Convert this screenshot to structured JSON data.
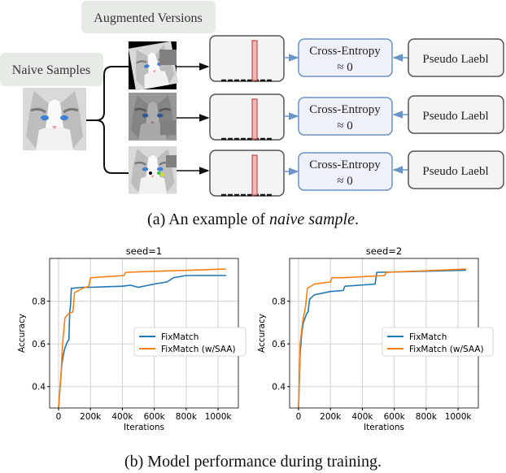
{
  "diagram": {
    "augmented_label": "Augmented Versions",
    "naive_label": "Naive Samples",
    "rows": [
      {
        "loss_line1": "Cross-Entropy",
        "loss_line2": "≈ 0",
        "pseudo_label": "Pseudo Laebl"
      },
      {
        "loss_line1": "Cross-Entropy",
        "loss_line2": "≈ 0",
        "pseudo_label": "Pseudo Laebl"
      },
      {
        "loss_line1": "Cross-Entropy",
        "loss_line2": "≈ 0",
        "pseudo_label": "Pseudo Laebl"
      }
    ],
    "caption_a_prefix": "(a) An example of ",
    "caption_a_italic": "naive sample",
    "caption_a_suffix": ".",
    "colors": {
      "label_bg": "#e6ebe6",
      "loss_border": "#6a93c8",
      "loss_bg": "#eef2f8",
      "bar": "#f4b8b8",
      "bar_border": "#c0504d"
    }
  },
  "caption_b": "(b) Model performance during training.",
  "chart_data": [
    {
      "type": "line",
      "title": "seed=1",
      "xlabel": "Iterations",
      "ylabel": "Accuracy",
      "xlim": [
        -56000,
        1127000
      ],
      "ylim": [
        0.3,
        1.0
      ],
      "xticks": [
        0,
        200000,
        400000,
        600000,
        800000,
        1000000
      ],
      "xtick_labels": [
        "0",
        "200k",
        "400k",
        "600k",
        "800k",
        "1000k"
      ],
      "yticks": [
        0.4,
        0.6,
        0.8
      ],
      "ytick_labels": [
        "0.4",
        "0.6",
        "0.8"
      ],
      "grid": true,
      "legend": "center-right",
      "series": [
        {
          "name": "FixMatch",
          "color": "#1f77b4",
          "x": [
            0,
            10000,
            20000,
            30000,
            40000,
            55000,
            65000,
            70000,
            75000,
            80000,
            150000,
            200000,
            400000,
            450000,
            500000,
            600000,
            680000,
            720000,
            800000,
            1050000
          ],
          "y": [
            0.3,
            0.4,
            0.5,
            0.55,
            0.58,
            0.61,
            0.62,
            0.75,
            0.78,
            0.86,
            0.865,
            0.865,
            0.87,
            0.875,
            0.865,
            0.88,
            0.89,
            0.91,
            0.92,
            0.92
          ]
        },
        {
          "name": "FixMatch (w/SAA)",
          "color": "#ff7f0e",
          "x": [
            0,
            15000,
            25000,
            40000,
            60000,
            90000,
            100000,
            150000,
            190000,
            200000,
            410000,
            420000,
            600000,
            1050000
          ],
          "y": [
            0.3,
            0.45,
            0.6,
            0.72,
            0.74,
            0.75,
            0.84,
            0.86,
            0.87,
            0.91,
            0.92,
            0.935,
            0.94,
            0.95
          ]
        }
      ]
    },
    {
      "type": "line",
      "title": "seed=2",
      "xlabel": "Iterations",
      "ylabel": "Accuracy",
      "xlim": [
        -56000,
        1127000
      ],
      "ylim": [
        0.3,
        1.0
      ],
      "xticks": [
        0,
        200000,
        400000,
        600000,
        800000,
        1000000
      ],
      "xtick_labels": [
        "0",
        "200k",
        "400k",
        "600k",
        "800k",
        "1000k"
      ],
      "yticks": [
        0.4,
        0.6,
        0.8
      ],
      "ytick_labels": [
        "0.4",
        "0.6",
        "0.8"
      ],
      "grid": true,
      "legend": "center-right",
      "series": [
        {
          "name": "FixMatch",
          "color": "#1f77b4",
          "x": [
            0,
            10000,
            20000,
            30000,
            50000,
            60000,
            70000,
            100000,
            200000,
            280000,
            290000,
            480000,
            490000,
            1050000
          ],
          "y": [
            0.3,
            0.55,
            0.65,
            0.7,
            0.74,
            0.75,
            0.81,
            0.83,
            0.845,
            0.85,
            0.87,
            0.88,
            0.935,
            0.945
          ]
        },
        {
          "name": "FixMatch (w/SAA)",
          "color": "#ff7f0e",
          "x": [
            0,
            10000,
            25000,
            35000,
            45000,
            55000,
            100000,
            200000,
            210000,
            280000,
            540000,
            550000,
            1050000
          ],
          "y": [
            0.3,
            0.6,
            0.7,
            0.74,
            0.78,
            0.86,
            0.88,
            0.89,
            0.91,
            0.91,
            0.92,
            0.935,
            0.95
          ]
        }
      ]
    }
  ]
}
